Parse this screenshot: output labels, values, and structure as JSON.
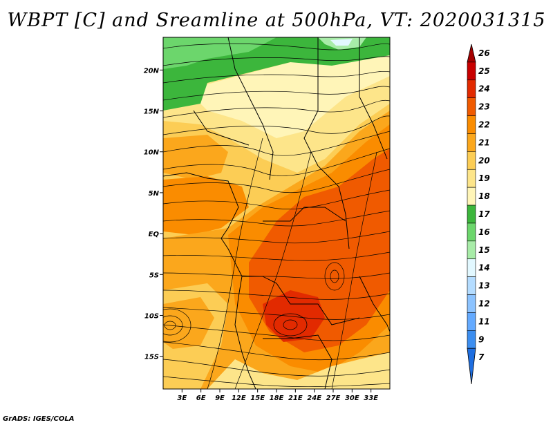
{
  "title": "WBPT [C] and Sreamline at 500hPa, VT: 2020031315",
  "credit": "GrADS: IGES/COLA",
  "map": {
    "lon_range": [
      0,
      36
    ],
    "lat_range": [
      -19,
      24
    ],
    "lat_labels": [
      {
        "lat": 20,
        "label": "20N"
      },
      {
        "lat": 15,
        "label": "15N"
      },
      {
        "lat": 10,
        "label": "10N"
      },
      {
        "lat": 5,
        "label": "5N"
      },
      {
        "lat": 0,
        "label": "EQ"
      },
      {
        "lat": -5,
        "label": "5S"
      },
      {
        "lat": -10,
        "label": "10S"
      },
      {
        "lat": -15,
        "label": "15S"
      }
    ],
    "lon_labels": [
      {
        "lon": 3,
        "label": "3E"
      },
      {
        "lon": 6,
        "label": "6E"
      },
      {
        "lon": 9,
        "label": "9E"
      },
      {
        "lon": 12,
        "label": "12E"
      },
      {
        "lon": 15,
        "label": "15E"
      },
      {
        "lon": 18,
        "label": "18E"
      },
      {
        "lon": 21,
        "label": "21E"
      },
      {
        "lon": 24,
        "label": "24E"
      },
      {
        "lon": 27,
        "label": "27E"
      },
      {
        "lon": 30,
        "label": "30E"
      },
      {
        "lon": 33,
        "label": "33E"
      }
    ]
  },
  "colorbar": {
    "levels": [
      {
        "label": "26",
        "color": "#a50000"
      },
      {
        "label": "25",
        "color": "#c80000"
      },
      {
        "label": "24",
        "color": "#e22a00"
      },
      {
        "label": "23",
        "color": "#f05a00"
      },
      {
        "label": "22",
        "color": "#fa8c00"
      },
      {
        "label": "21",
        "color": "#fba71c"
      },
      {
        "label": "20",
        "color": "#fccd55"
      },
      {
        "label": "19",
        "color": "#fde58a"
      },
      {
        "label": "18",
        "color": "#fff5b8"
      },
      {
        "label": "17",
        "color": "#3cb63c"
      },
      {
        "label": "16",
        "color": "#6cd66c"
      },
      {
        "label": "15",
        "color": "#a8eca8"
      },
      {
        "label": "14",
        "color": "#e2f8ff"
      },
      {
        "label": "13",
        "color": "#b4dcff"
      },
      {
        "label": "12",
        "color": "#8cc3ff"
      },
      {
        "label": "11",
        "color": "#64aaff"
      },
      {
        "label": "9",
        "color": "#3c8ef0"
      },
      {
        "label": "7",
        "color": "#1e6ee0"
      }
    ]
  }
}
